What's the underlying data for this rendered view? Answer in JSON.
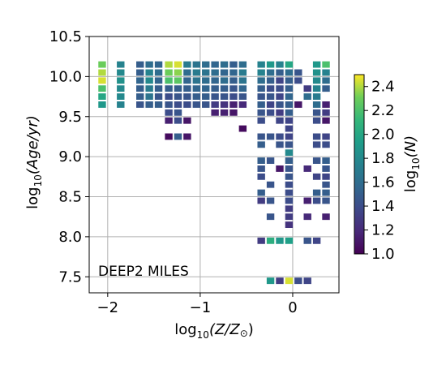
{
  "chart_data": {
    "type": "heatmap",
    "annotation": "DEEP2 MILES",
    "x_axis": {
      "label_base": "log",
      "label_sub": "10",
      "label_rest": "(Z/Z",
      "label_sun": "⊙",
      "label_close": ")",
      "range": [
        -2.2,
        0.5
      ],
      "ticks": [
        -2,
        -1,
        0
      ],
      "tick_labels": [
        "−2",
        "−1",
        "0"
      ]
    },
    "y_axis": {
      "label_base": "log",
      "label_sub": "10",
      "label_rest": "(Age/yr)",
      "range": [
        7.3,
        10.5
      ],
      "ticks": [
        7.5,
        8.0,
        8.5,
        9.0,
        9.5,
        10.0,
        10.5
      ],
      "tick_labels": [
        "7.5",
        "8.0",
        "8.5",
        "9.0",
        "9.5",
        "10.0",
        "10.5"
      ]
    },
    "grid": true,
    "colorbar": {
      "label_base": "log",
      "label_sub": "10",
      "label_rest": "(N)",
      "range": [
        1.0,
        2.5
      ],
      "ticks": [
        1.0,
        1.2,
        1.4,
        1.6,
        1.8,
        2.0,
        2.2,
        2.4
      ],
      "tick_labels": [
        "1.0",
        "1.2",
        "1.4",
        "1.6",
        "1.8",
        "2.0",
        "2.2",
        "2.4"
      ],
      "colormap": "viridis"
    },
    "cell_size": {
      "dx": 0.1,
      "dy": 0.1
    },
    "cells": [
      {
        "x": -2.06,
        "y": 10.15,
        "v": 2.3
      },
      {
        "x": -2.06,
        "y": 10.05,
        "v": 2.4
      },
      {
        "x": -2.06,
        "y": 9.95,
        "v": 2.45
      },
      {
        "x": -2.06,
        "y": 9.85,
        "v": 2.2
      },
      {
        "x": -2.06,
        "y": 9.75,
        "v": 2.0
      },
      {
        "x": -2.06,
        "y": 9.65,
        "v": 1.9
      },
      {
        "x": -1.86,
        "y": 10.15,
        "v": 1.75
      },
      {
        "x": -1.86,
        "y": 10.05,
        "v": 1.8
      },
      {
        "x": -1.86,
        "y": 9.95,
        "v": 1.85
      },
      {
        "x": -1.86,
        "y": 9.85,
        "v": 1.8
      },
      {
        "x": -1.86,
        "y": 9.75,
        "v": 1.8
      },
      {
        "x": -1.86,
        "y": 9.65,
        "v": 1.75
      },
      {
        "x": -1.65,
        "y": 10.15,
        "v": 1.5
      },
      {
        "x": -1.65,
        "y": 10.05,
        "v": 1.5
      },
      {
        "x": -1.65,
        "y": 9.95,
        "v": 1.55
      },
      {
        "x": -1.65,
        "y": 9.85,
        "v": 1.5
      },
      {
        "x": -1.65,
        "y": 9.75,
        "v": 1.5
      },
      {
        "x": -1.65,
        "y": 9.65,
        "v": 1.45
      },
      {
        "x": -1.55,
        "y": 10.15,
        "v": 1.6
      },
      {
        "x": -1.55,
        "y": 10.05,
        "v": 1.75
      },
      {
        "x": -1.55,
        "y": 9.95,
        "v": 1.8
      },
      {
        "x": -1.55,
        "y": 9.85,
        "v": 1.7
      },
      {
        "x": -1.55,
        "y": 9.75,
        "v": 1.65
      },
      {
        "x": -1.55,
        "y": 9.65,
        "v": 1.5
      },
      {
        "x": -1.45,
        "y": 10.15,
        "v": 1.55
      },
      {
        "x": -1.45,
        "y": 10.05,
        "v": 1.6
      },
      {
        "x": -1.45,
        "y": 9.95,
        "v": 1.55
      },
      {
        "x": -1.45,
        "y": 9.85,
        "v": 1.5
      },
      {
        "x": -1.45,
        "y": 9.75,
        "v": 1.45
      },
      {
        "x": -1.45,
        "y": 9.65,
        "v": 1.5
      },
      {
        "x": -1.34,
        "y": 10.15,
        "v": 2.4
      },
      {
        "x": -1.34,
        "y": 10.05,
        "v": 2.3
      },
      {
        "x": -1.34,
        "y": 9.95,
        "v": 2.2
      },
      {
        "x": -1.34,
        "y": 9.85,
        "v": 1.5
      },
      {
        "x": -1.34,
        "y": 9.75,
        "v": 1.4
      },
      {
        "x": -1.34,
        "y": 9.65,
        "v": 1.45
      },
      {
        "x": -1.34,
        "y": 9.55,
        "v": 1.4
      },
      {
        "x": -1.34,
        "y": 9.45,
        "v": 1.15
      },
      {
        "x": -1.34,
        "y": 9.25,
        "v": 1.05
      },
      {
        "x": -1.24,
        "y": 10.15,
        "v": 2.45
      },
      {
        "x": -1.24,
        "y": 10.05,
        "v": 2.35
      },
      {
        "x": -1.24,
        "y": 9.95,
        "v": 2.25
      },
      {
        "x": -1.24,
        "y": 9.85,
        "v": 1.5
      },
      {
        "x": -1.24,
        "y": 9.75,
        "v": 1.45
      },
      {
        "x": -1.24,
        "y": 9.65,
        "v": 1.4
      },
      {
        "x": -1.24,
        "y": 9.55,
        "v": 1.45
      },
      {
        "x": -1.24,
        "y": 9.45,
        "v": 1.4
      },
      {
        "x": -1.24,
        "y": 9.25,
        "v": 1.5
      },
      {
        "x": -1.14,
        "y": 10.15,
        "v": 1.7
      },
      {
        "x": -1.14,
        "y": 10.05,
        "v": 1.6
      },
      {
        "x": -1.14,
        "y": 9.95,
        "v": 1.55
      },
      {
        "x": -1.14,
        "y": 9.85,
        "v": 1.5
      },
      {
        "x": -1.14,
        "y": 9.75,
        "v": 1.45
      },
      {
        "x": -1.14,
        "y": 9.65,
        "v": 1.4
      },
      {
        "x": -1.14,
        "y": 9.45,
        "v": 1.1
      },
      {
        "x": -1.14,
        "y": 9.25,
        "v": 1.1
      },
      {
        "x": -1.04,
        "y": 10.15,
        "v": 1.65
      },
      {
        "x": -1.04,
        "y": 10.05,
        "v": 1.7
      },
      {
        "x": -1.04,
        "y": 9.95,
        "v": 1.65
      },
      {
        "x": -1.04,
        "y": 9.85,
        "v": 1.55
      },
      {
        "x": -1.04,
        "y": 9.75,
        "v": 1.5
      },
      {
        "x": -1.04,
        "y": 9.65,
        "v": 1.45
      },
      {
        "x": -0.94,
        "y": 10.15,
        "v": 1.6
      },
      {
        "x": -0.94,
        "y": 10.05,
        "v": 1.65
      },
      {
        "x": -0.94,
        "y": 9.95,
        "v": 1.6
      },
      {
        "x": -0.94,
        "y": 9.85,
        "v": 1.55
      },
      {
        "x": -0.94,
        "y": 9.75,
        "v": 1.5
      },
      {
        "x": -0.94,
        "y": 9.65,
        "v": 1.45
      },
      {
        "x": -0.84,
        "y": 10.15,
        "v": 1.55
      },
      {
        "x": -0.84,
        "y": 10.05,
        "v": 1.6
      },
      {
        "x": -0.84,
        "y": 9.95,
        "v": 1.55
      },
      {
        "x": -0.84,
        "y": 9.85,
        "v": 1.5
      },
      {
        "x": -0.84,
        "y": 9.75,
        "v": 1.45
      },
      {
        "x": -0.84,
        "y": 9.65,
        "v": 1.3
      },
      {
        "x": -0.84,
        "y": 9.55,
        "v": 1.15
      },
      {
        "x": -0.74,
        "y": 10.15,
        "v": 1.6
      },
      {
        "x": -0.74,
        "y": 10.05,
        "v": 1.55
      },
      {
        "x": -0.74,
        "y": 9.95,
        "v": 1.6
      },
      {
        "x": -0.74,
        "y": 9.85,
        "v": 1.5
      },
      {
        "x": -0.74,
        "y": 9.75,
        "v": 1.45
      },
      {
        "x": -0.74,
        "y": 9.65,
        "v": 1.25
      },
      {
        "x": -0.74,
        "y": 9.55,
        "v": 1.15
      },
      {
        "x": -0.64,
        "y": 10.15,
        "v": 1.5
      },
      {
        "x": -0.64,
        "y": 10.05,
        "v": 1.55
      },
      {
        "x": -0.64,
        "y": 9.95,
        "v": 1.5
      },
      {
        "x": -0.64,
        "y": 9.85,
        "v": 1.45
      },
      {
        "x": -0.64,
        "y": 9.75,
        "v": 1.4
      },
      {
        "x": -0.64,
        "y": 9.65,
        "v": 1.15
      },
      {
        "x": -0.64,
        "y": 9.55,
        "v": 1.1
      },
      {
        "x": -0.54,
        "y": 10.15,
        "v": 1.6
      },
      {
        "x": -0.54,
        "y": 10.05,
        "v": 1.7
      },
      {
        "x": -0.54,
        "y": 9.95,
        "v": 1.65
      },
      {
        "x": -0.54,
        "y": 9.85,
        "v": 1.55
      },
      {
        "x": -0.54,
        "y": 9.75,
        "v": 1.45
      },
      {
        "x": -0.54,
        "y": 9.65,
        "v": 1.2
      },
      {
        "x": -0.54,
        "y": 9.35,
        "v": 1.05
      },
      {
        "x": -0.34,
        "y": 10.15,
        "v": 1.75
      },
      {
        "x": -0.34,
        "y": 10.05,
        "v": 1.75
      },
      {
        "x": -0.34,
        "y": 9.95,
        "v": 1.6
      },
      {
        "x": -0.34,
        "y": 9.85,
        "v": 1.5
      },
      {
        "x": -0.34,
        "y": 9.75,
        "v": 1.45
      },
      {
        "x": -0.34,
        "y": 9.65,
        "v": 1.5
      },
      {
        "x": -0.34,
        "y": 9.55,
        "v": 1.45
      },
      {
        "x": -0.34,
        "y": 9.45,
        "v": 1.4
      },
      {
        "x": -0.34,
        "y": 9.25,
        "v": 1.45
      },
      {
        "x": -0.34,
        "y": 9.15,
        "v": 1.5
      },
      {
        "x": -0.34,
        "y": 8.95,
        "v": 1.5
      },
      {
        "x": -0.34,
        "y": 8.85,
        "v": 1.45
      },
      {
        "x": -0.34,
        "y": 8.75,
        "v": 1.4
      },
      {
        "x": -0.34,
        "y": 8.55,
        "v": 1.5
      },
      {
        "x": -0.34,
        "y": 8.45,
        "v": 1.3
      },
      {
        "x": -0.34,
        "y": 7.95,
        "v": 1.3
      },
      {
        "x": -0.24,
        "y": 10.15,
        "v": 1.9
      },
      {
        "x": -0.24,
        "y": 10.05,
        "v": 1.6
      },
      {
        "x": -0.24,
        "y": 9.95,
        "v": 1.5
      },
      {
        "x": -0.24,
        "y": 9.85,
        "v": 1.4
      },
      {
        "x": -0.24,
        "y": 9.75,
        "v": 1.45
      },
      {
        "x": -0.24,
        "y": 9.65,
        "v": 1.35
      },
      {
        "x": -0.24,
        "y": 9.55,
        "v": 1.4
      },
      {
        "x": -0.24,
        "y": 9.25,
        "v": 1.45
      },
      {
        "x": -0.24,
        "y": 8.95,
        "v": 1.45
      },
      {
        "x": -0.24,
        "y": 8.65,
        "v": 1.45
      },
      {
        "x": -0.24,
        "y": 8.45,
        "v": 1.45
      },
      {
        "x": -0.24,
        "y": 8.25,
        "v": 1.45
      },
      {
        "x": -0.24,
        "y": 7.95,
        "v": 2.05
      },
      {
        "x": -0.24,
        "y": 7.45,
        "v": 1.9
      },
      {
        "x": -0.14,
        "y": 10.15,
        "v": 1.75
      },
      {
        "x": -0.14,
        "y": 10.05,
        "v": 1.5
      },
      {
        "x": -0.14,
        "y": 9.95,
        "v": 1.35
      },
      {
        "x": -0.14,
        "y": 9.85,
        "v": 1.4
      },
      {
        "x": -0.14,
        "y": 9.75,
        "v": 1.35
      },
      {
        "x": -0.14,
        "y": 9.65,
        "v": 1.45
      },
      {
        "x": -0.14,
        "y": 9.55,
        "v": 1.3
      },
      {
        "x": -0.14,
        "y": 9.45,
        "v": 1.35
      },
      {
        "x": -0.14,
        "y": 9.25,
        "v": 1.4
      },
      {
        "x": -0.14,
        "y": 9.15,
        "v": 1.45
      },
      {
        "x": -0.14,
        "y": 8.85,
        "v": 1.1
      },
      {
        "x": -0.14,
        "y": 7.95,
        "v": 1.9
      },
      {
        "x": -0.14,
        "y": 7.45,
        "v": 1.3
      },
      {
        "x": -0.04,
        "y": 10.15,
        "v": 2.0
      },
      {
        "x": -0.04,
        "y": 10.05,
        "v": 1.6
      },
      {
        "x": -0.04,
        "y": 9.95,
        "v": 1.5
      },
      {
        "x": -0.04,
        "y": 9.85,
        "v": 1.5
      },
      {
        "x": -0.04,
        "y": 9.75,
        "v": 1.55
      },
      {
        "x": -0.04,
        "y": 9.65,
        "v": 1.5
      },
      {
        "x": -0.04,
        "y": 9.55,
        "v": 1.5
      },
      {
        "x": -0.04,
        "y": 9.45,
        "v": 1.35
      },
      {
        "x": -0.04,
        "y": 9.35,
        "v": 1.35
      },
      {
        "x": -0.04,
        "y": 9.25,
        "v": 1.35
      },
      {
        "x": -0.04,
        "y": 9.15,
        "v": 1.45
      },
      {
        "x": -0.04,
        "y": 9.05,
        "v": 1.8
      },
      {
        "x": -0.04,
        "y": 8.95,
        "v": 1.5
      },
      {
        "x": -0.04,
        "y": 8.85,
        "v": 1.45
      },
      {
        "x": -0.04,
        "y": 8.75,
        "v": 1.45
      },
      {
        "x": -0.04,
        "y": 8.65,
        "v": 1.4
      },
      {
        "x": -0.04,
        "y": 8.55,
        "v": 1.4
      },
      {
        "x": -0.04,
        "y": 8.45,
        "v": 1.4
      },
      {
        "x": -0.04,
        "y": 8.35,
        "v": 1.3
      },
      {
        "x": -0.04,
        "y": 8.25,
        "v": 1.3
      },
      {
        "x": -0.04,
        "y": 8.15,
        "v": 1.25
      },
      {
        "x": -0.04,
        "y": 7.95,
        "v": 1.95
      },
      {
        "x": -0.04,
        "y": 7.45,
        "v": 2.45
      },
      {
        "x": 0.06,
        "y": 10.05,
        "v": 1.45
      },
      {
        "x": 0.06,
        "y": 9.95,
        "v": 1.4
      },
      {
        "x": 0.06,
        "y": 9.65,
        "v": 1.1
      },
      {
        "x": 0.06,
        "y": 7.45,
        "v": 1.4
      },
      {
        "x": 0.16,
        "y": 9.85,
        "v": 1.3
      },
      {
        "x": 0.16,
        "y": 9.75,
        "v": 1.6
      },
      {
        "x": 0.16,
        "y": 8.85,
        "v": 1.2
      },
      {
        "x": 0.16,
        "y": 8.45,
        "v": 1.15
      },
      {
        "x": 0.16,
        "y": 8.25,
        "v": 1.2
      },
      {
        "x": 0.16,
        "y": 7.95,
        "v": 1.45
      },
      {
        "x": 0.16,
        "y": 7.45,
        "v": 1.35
      },
      {
        "x": 0.26,
        "y": 10.15,
        "v": 1.9
      },
      {
        "x": 0.26,
        "y": 10.05,
        "v": 1.85
      },
      {
        "x": 0.26,
        "y": 9.95,
        "v": 1.8
      },
      {
        "x": 0.26,
        "y": 9.85,
        "v": 1.75
      },
      {
        "x": 0.26,
        "y": 9.75,
        "v": 1.7
      },
      {
        "x": 0.26,
        "y": 9.65,
        "v": 1.6
      },
      {
        "x": 0.26,
        "y": 9.55,
        "v": 1.45
      },
      {
        "x": 0.26,
        "y": 9.45,
        "v": 1.4
      },
      {
        "x": 0.26,
        "y": 9.25,
        "v": 1.4
      },
      {
        "x": 0.26,
        "y": 9.15,
        "v": 1.4
      },
      {
        "x": 0.26,
        "y": 8.95,
        "v": 1.45
      },
      {
        "x": 0.26,
        "y": 8.75,
        "v": 1.35
      },
      {
        "x": 0.26,
        "y": 8.55,
        "v": 1.5
      },
      {
        "x": 0.26,
        "y": 8.45,
        "v": 1.4
      },
      {
        "x": 0.26,
        "y": 7.95,
        "v": 1.35
      },
      {
        "x": 0.36,
        "y": 10.15,
        "v": 2.2
      },
      {
        "x": 0.36,
        "y": 10.05,
        "v": 1.75
      },
      {
        "x": 0.36,
        "y": 9.95,
        "v": 1.6
      },
      {
        "x": 0.36,
        "y": 9.85,
        "v": 1.5
      },
      {
        "x": 0.36,
        "y": 9.65,
        "v": 1.15
      },
      {
        "x": 0.36,
        "y": 9.55,
        "v": 1.3
      },
      {
        "x": 0.36,
        "y": 9.45,
        "v": 1.1
      },
      {
        "x": 0.36,
        "y": 9.25,
        "v": 1.35
      },
      {
        "x": 0.36,
        "y": 9.15,
        "v": 1.4
      },
      {
        "x": 0.36,
        "y": 8.95,
        "v": 1.5
      },
      {
        "x": 0.36,
        "y": 8.85,
        "v": 1.45
      },
      {
        "x": 0.36,
        "y": 8.75,
        "v": 1.35
      },
      {
        "x": 0.36,
        "y": 8.65,
        "v": 1.45
      },
      {
        "x": 0.36,
        "y": 8.55,
        "v": 1.5
      },
      {
        "x": 0.36,
        "y": 8.45,
        "v": 1.45
      },
      {
        "x": 0.36,
        "y": 8.25,
        "v": 1.15
      }
    ]
  }
}
